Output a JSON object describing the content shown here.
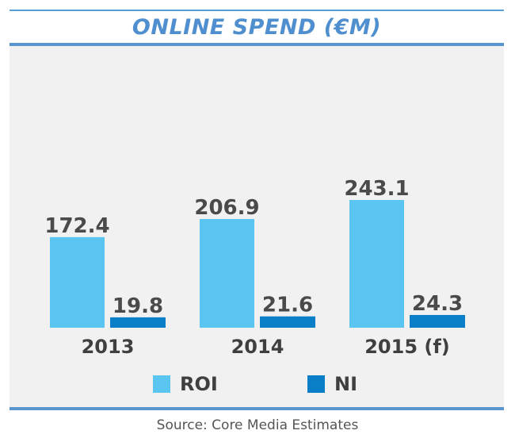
{
  "chart_data": {
    "type": "bar",
    "title": "ONLINE SPEND  (€M)",
    "categories": [
      "2013",
      "2014",
      "2015 (f)"
    ],
    "series": [
      {
        "name": "ROI",
        "values": [
          172.4,
          206.9,
          243.1
        ],
        "color": "#5bc5f2"
      },
      {
        "name": "NI",
        "values": [
          19.8,
          21.6,
          24.3
        ],
        "color": "#0a7fc8"
      }
    ],
    "value_labels": {
      "ROI": [
        "172.4",
        "206.9",
        "243.1"
      ],
      "NI": [
        "19.8",
        "21.6",
        "24.3"
      ]
    },
    "ylim": [
      0,
      250
    ],
    "grid": false,
    "legend": "bottom",
    "source": "Source: Core Media Estimates"
  }
}
